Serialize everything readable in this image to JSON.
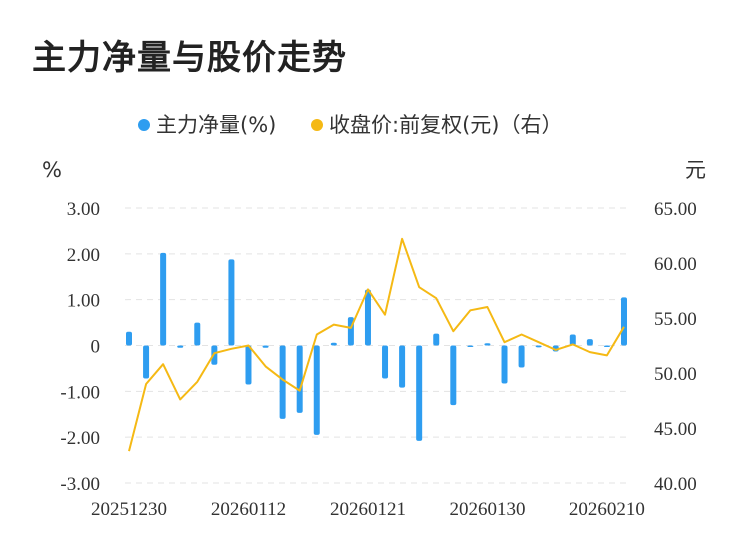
{
  "title": "主力净量与股价走势",
  "chart_data": {
    "type": "bar+line",
    "legend": [
      {
        "name": "主力净量(%)",
        "color": "#2e9df0",
        "marker": "dot"
      },
      {
        "name": "收盘价:前复权(元)（右）",
        "color": "#f5b914",
        "marker": "dot"
      }
    ],
    "left_unit": "%",
    "right_unit": "元",
    "y_left": {
      "min": -3,
      "max": 3,
      "ticks": [
        "3.00",
        "2.00",
        "1.00",
        "0",
        "-1.00",
        "-2.00",
        "-3.00"
      ]
    },
    "y_right": {
      "min": 40,
      "max": 65,
      "ticks": [
        "65.00",
        "60.00",
        "55.00",
        "50.00",
        "45.00",
        "40.00"
      ]
    },
    "x_ticks": [
      "20251230",
      "20260112",
      "20260121",
      "20260130",
      "20260210"
    ],
    "x_tick_index": [
      0,
      7,
      14,
      21,
      28
    ],
    "grid": true,
    "legend_position": "top",
    "series": [
      {
        "name": "主力净量(%)",
        "type": "bar",
        "axis": "left",
        "color": "#2e9df0",
        "values": [
          0.3,
          -0.72,
          2.02,
          -0.05,
          0.5,
          -0.42,
          1.88,
          -0.85,
          -0.05,
          -1.6,
          -1.47,
          -1.95,
          0.06,
          0.62,
          1.22,
          -0.72,
          -0.92,
          -2.08,
          0.26,
          -1.3,
          -0.02,
          0.05,
          -0.83,
          -0.48,
          -0.04,
          -0.13,
          0.24,
          0.14,
          -0.02,
          1.05
        ]
      },
      {
        "name": "收盘价:前复权(元)（右）",
        "type": "line",
        "axis": "right",
        "color": "#f5b914",
        "values": [
          42.9,
          49.0,
          50.8,
          47.6,
          49.2,
          51.8,
          52.2,
          52.5,
          50.6,
          49.4,
          48.4,
          53.5,
          54.4,
          54.1,
          57.6,
          55.3,
          62.2,
          57.8,
          56.8,
          53.8,
          55.7,
          56.0,
          52.8,
          53.5,
          52.8,
          52.1,
          52.6,
          51.9,
          51.6,
          54.2
        ]
      }
    ]
  }
}
